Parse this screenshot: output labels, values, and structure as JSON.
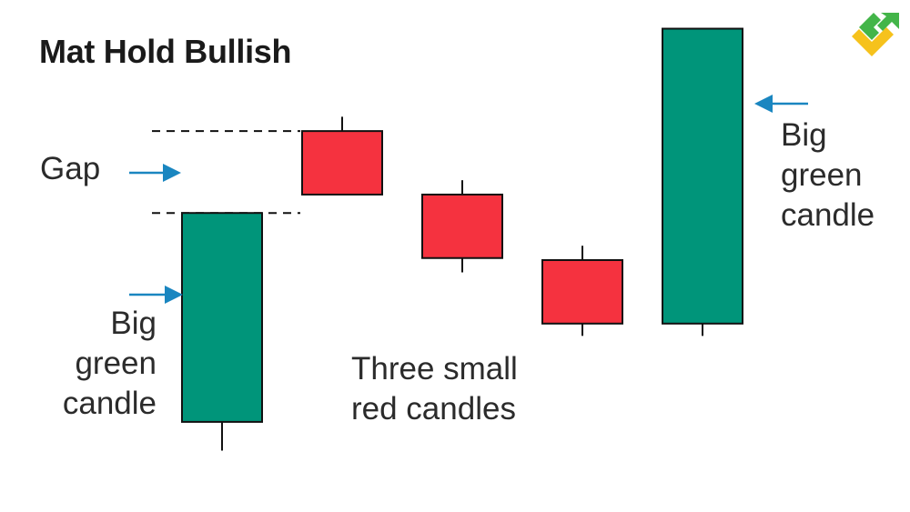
{
  "title": "Mat Hold Bullish",
  "labels": {
    "gap": "Gap",
    "big_green_left": "Big\ngreen\ncandle",
    "big_green_right": "Big\ngreen\ncandle",
    "three_small_red": "Three small\nred candles"
  },
  "colors": {
    "bullish": "#00957a",
    "bearish": "#f5323f",
    "arrow": "#1a86c0",
    "outline": "#111111",
    "logo_green": "#43b549",
    "logo_yellow": "#f6c21c"
  },
  "icons": {
    "logo": "brand-logo-icon"
  },
  "chart_data": {
    "type": "candlestick",
    "candles": [
      {
        "direction": "bullish",
        "open": 2.2,
        "close": 7.3,
        "high": 7.3,
        "low": 1.5
      },
      {
        "direction": "bearish",
        "open": 9.3,
        "close": 7.75,
        "high": 9.65,
        "low": 7.75
      },
      {
        "direction": "bearish",
        "open": 7.75,
        "close": 6.2,
        "high": 8.1,
        "low": 5.85
      },
      {
        "direction": "bearish",
        "open": 6.15,
        "close": 4.6,
        "high": 6.5,
        "low": 4.3
      },
      {
        "direction": "bullish",
        "open": 4.6,
        "close": 11.8,
        "high": 11.8,
        "low": 4.3
      }
    ],
    "ylim": [
      0,
      12.5
    ],
    "gap_range": [
      7.3,
      9.3
    ]
  }
}
